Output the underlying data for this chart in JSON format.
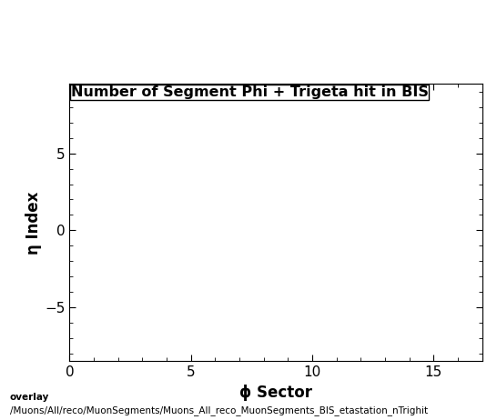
{
  "title": "Number of Segment Phi + Trigeta hit in BIS",
  "xlabel": "ϕ Sector",
  "ylabel": "η Index",
  "xlim": [
    0,
    17
  ],
  "ylim": [
    -8.5,
    9.5
  ],
  "xticks": [
    0,
    5,
    10,
    15
  ],
  "yticks": [
    -5,
    0,
    5
  ],
  "background_color": "#ffffff",
  "plot_bg_color": "#ffffff",
  "footer_label": "overlay",
  "footer_path": "/Muons/All/reco/MuonSegments/Muons_All_reco_MuonSegments_BIS_etastation_nTrighit",
  "title_fontsize": 11.5,
  "axis_label_fontsize": 12,
  "tick_fontsize": 11,
  "footer_fontsize": 7.5
}
